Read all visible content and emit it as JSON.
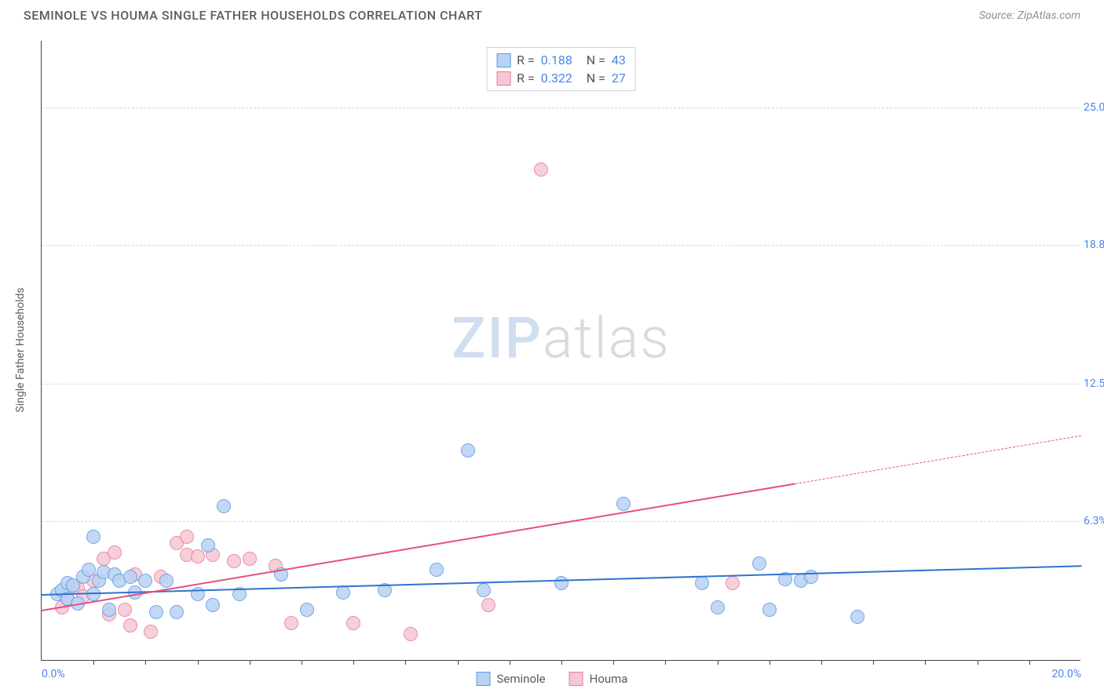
{
  "title": "SEMINOLE VS HOUMA SINGLE FATHER HOUSEHOLDS CORRELATION CHART",
  "source": "Source: ZipAtlas.com",
  "y_axis_title": "Single Father Households",
  "watermark": {
    "bold": "ZIP",
    "light": "atlas"
  },
  "colors": {
    "series_a_fill": "#b9d2f4",
    "series_a_stroke": "#5d9bdc",
    "series_b_fill": "#f6c7d3",
    "series_b_stroke": "#e77a9a",
    "trend_a": "#2f73d1",
    "trend_b": "#e64f7c",
    "tick_label": "#4a86e8"
  },
  "xlim": [
    0,
    20
  ],
  "ylim": [
    0,
    28
  ],
  "y_ticks": [
    {
      "v": 6.3,
      "label": "6.3%"
    },
    {
      "v": 12.5,
      "label": "12.5%"
    },
    {
      "v": 18.8,
      "label": "18.8%"
    },
    {
      "v": 25.0,
      "label": "25.0%"
    }
  ],
  "x_major_labels": [
    {
      "v": 0,
      "label": "0.0%",
      "align": "left"
    },
    {
      "v": 20,
      "label": "20.0%",
      "align": "right"
    }
  ],
  "x_minor_ticks": [
    1,
    2,
    3,
    4,
    5,
    6,
    7,
    8,
    9,
    10,
    11,
    12,
    13,
    14,
    15,
    16,
    17,
    18,
    19
  ],
  "stats": [
    {
      "series": "a",
      "r_label": "R =",
      "r": "0.188",
      "n_label": "N =",
      "n": "43"
    },
    {
      "series": "b",
      "r_label": "R =",
      "r": "0.322",
      "n_label": "N =",
      "n": "27"
    }
  ],
  "legend": [
    {
      "series": "a",
      "label": "Seminole"
    },
    {
      "series": "b",
      "label": "Houma"
    }
  ],
  "trend_lines": {
    "a": {
      "x1": 0,
      "y1": 3.0,
      "x2": 20,
      "y2": 4.3,
      "solid_until_x": 20
    },
    "b": {
      "x1": 0,
      "y1": 2.3,
      "x2": 20,
      "y2": 10.2,
      "solid_until_x": 14.5
    }
  },
  "points_a": [
    {
      "x": 0.3,
      "y": 3.0
    },
    {
      "x": 0.4,
      "y": 3.2
    },
    {
      "x": 0.5,
      "y": 2.8
    },
    {
      "x": 0.5,
      "y": 3.5
    },
    {
      "x": 0.6,
      "y": 3.4
    },
    {
      "x": 0.7,
      "y": 2.6
    },
    {
      "x": 0.8,
      "y": 3.8
    },
    {
      "x": 0.9,
      "y": 4.1
    },
    {
      "x": 1.0,
      "y": 5.6
    },
    {
      "x": 1.0,
      "y": 3.0
    },
    {
      "x": 1.1,
      "y": 3.6
    },
    {
      "x": 1.2,
      "y": 4.0
    },
    {
      "x": 1.3,
      "y": 2.3
    },
    {
      "x": 1.4,
      "y": 3.9
    },
    {
      "x": 1.5,
      "y": 3.6
    },
    {
      "x": 1.7,
      "y": 3.8
    },
    {
      "x": 1.8,
      "y": 3.1
    },
    {
      "x": 2.0,
      "y": 3.6
    },
    {
      "x": 2.2,
      "y": 2.2
    },
    {
      "x": 2.4,
      "y": 3.6
    },
    {
      "x": 2.6,
      "y": 2.2
    },
    {
      "x": 3.0,
      "y": 3.0
    },
    {
      "x": 3.2,
      "y": 5.2
    },
    {
      "x": 3.3,
      "y": 2.5
    },
    {
      "x": 3.5,
      "y": 7.0
    },
    {
      "x": 3.8,
      "y": 3.0
    },
    {
      "x": 4.6,
      "y": 3.9
    },
    {
      "x": 5.1,
      "y": 2.3
    },
    {
      "x": 5.8,
      "y": 3.1
    },
    {
      "x": 6.6,
      "y": 3.2
    },
    {
      "x": 7.6,
      "y": 4.1
    },
    {
      "x": 8.2,
      "y": 9.5
    },
    {
      "x": 8.5,
      "y": 3.2
    },
    {
      "x": 10.0,
      "y": 3.5
    },
    {
      "x": 11.2,
      "y": 7.1
    },
    {
      "x": 12.7,
      "y": 3.5
    },
    {
      "x": 13.0,
      "y": 2.4
    },
    {
      "x": 13.8,
      "y": 4.4
    },
    {
      "x": 14.3,
      "y": 3.7
    },
    {
      "x": 14.6,
      "y": 3.6
    },
    {
      "x": 14.8,
      "y": 3.8
    },
    {
      "x": 15.7,
      "y": 2.0
    },
    {
      "x": 14.0,
      "y": 2.3
    }
  ],
  "points_b": [
    {
      "x": 0.4,
      "y": 2.4
    },
    {
      "x": 0.5,
      "y": 2.8
    },
    {
      "x": 0.7,
      "y": 3.3
    },
    {
      "x": 0.8,
      "y": 2.9
    },
    {
      "x": 1.0,
      "y": 3.6
    },
    {
      "x": 1.2,
      "y": 4.6
    },
    {
      "x": 1.3,
      "y": 2.1
    },
    {
      "x": 1.4,
      "y": 4.9
    },
    {
      "x": 1.6,
      "y": 2.3
    },
    {
      "x": 1.7,
      "y": 1.6
    },
    {
      "x": 1.8,
      "y": 3.9
    },
    {
      "x": 2.1,
      "y": 1.3
    },
    {
      "x": 2.3,
      "y": 3.8
    },
    {
      "x": 2.6,
      "y": 5.3
    },
    {
      "x": 2.8,
      "y": 4.8
    },
    {
      "x": 2.8,
      "y": 5.6
    },
    {
      "x": 3.0,
      "y": 4.7
    },
    {
      "x": 3.3,
      "y": 4.8
    },
    {
      "x": 3.7,
      "y": 4.5
    },
    {
      "x": 4.0,
      "y": 4.6
    },
    {
      "x": 4.5,
      "y": 4.3
    },
    {
      "x": 4.8,
      "y": 1.7
    },
    {
      "x": 6.0,
      "y": 1.7
    },
    {
      "x": 7.1,
      "y": 1.2
    },
    {
      "x": 8.6,
      "y": 2.5
    },
    {
      "x": 9.6,
      "y": 22.2
    },
    {
      "x": 13.3,
      "y": 3.5
    }
  ]
}
